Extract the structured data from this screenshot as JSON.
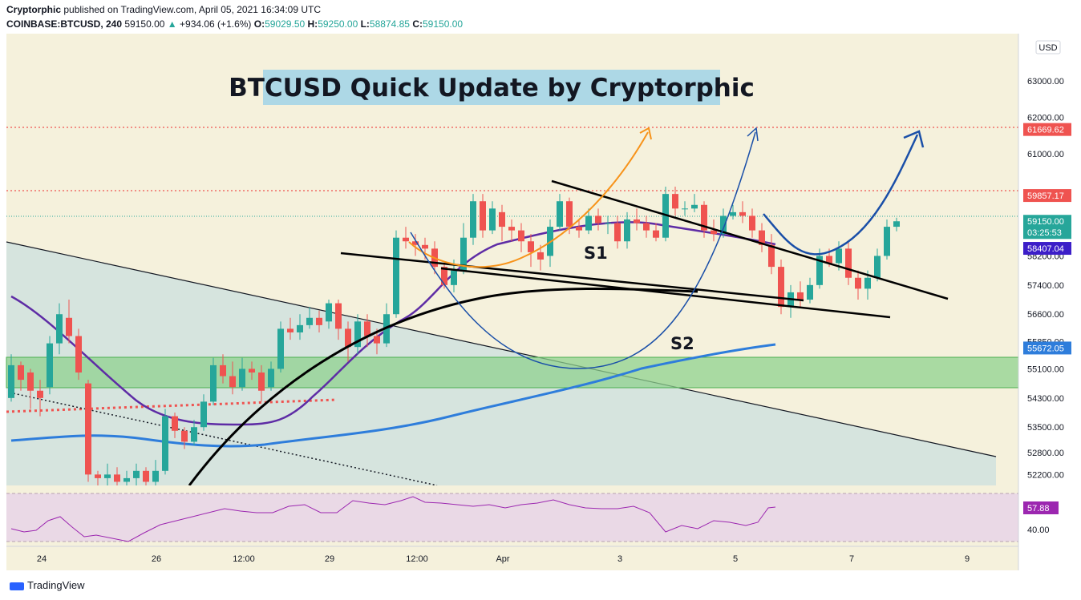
{
  "header": {
    "author": "Cryptorphic",
    "published": " published on TradingView.com, April 05, 2021 16:34:09 UTC",
    "symbol": "COINBASE:BTCUSD, 240",
    "last": "59150.00",
    "change": "+934.06 (+1.6%)",
    "o_label": "O:",
    "o": "59029.50",
    "h_label": "H:",
    "h": "59250.00",
    "l_label": "L:",
    "l": "58874.85",
    "c_label": "C:",
    "c": "59150.00"
  },
  "currency_label": "USD",
  "footer": {
    "brand": "TradingView"
  },
  "colors": {
    "background": "#f5f1dc",
    "bull": "#26a69a",
    "bear": "#ef5350",
    "zone": "#81c784",
    "rsi_bg": "#ead9e6",
    "rsi_line": "#9c27b0",
    "ma_slow": "#2e7ddb",
    "ma_fast": "#5e2ca5"
  },
  "chart_data": {
    "type": "candlestick",
    "title": "BTCUSD Quick Update by Cryptorphic",
    "x_ticks": [
      "24",
      "26",
      "12:00",
      "29",
      "12:00",
      "Apr",
      "3",
      "5",
      "7",
      "9"
    ],
    "y_ticks": [
      "63000.00",
      "62000.00",
      "61000.00",
      "59850.00",
      "58200.00",
      "57400.00",
      "56600.00",
      "55850.00",
      "55100.00",
      "54300.00",
      "53500.00",
      "52800.00",
      "52200.00"
    ],
    "y_range": [
      51900,
      64300
    ],
    "price_labels": [
      {
        "value": "61669.62",
        "price": 61669.62,
        "color": "#ef5350"
      },
      {
        "value": "59857.17",
        "price": 59857.17,
        "color": "#ef5350"
      },
      {
        "value": "59150.00",
        "price": 59150,
        "color": "#26a69a",
        "sub": "03:25:53"
      },
      {
        "value": "58407.04",
        "price": 58407.04,
        "color": "#3c1ec8"
      },
      {
        "value": "55672.05",
        "price": 55672.05,
        "color": "#2e7ddb"
      }
    ],
    "annotations": [
      "S1",
      "S2"
    ],
    "candles": [
      [
        54300,
        55200,
        55500,
        54200
      ],
      [
        55200,
        54800,
        55300,
        54500
      ],
      [
        55000,
        54500,
        55100,
        54000
      ],
      [
        54500,
        54300,
        54800,
        53800
      ],
      [
        54600,
        55800,
        56000,
        54400
      ],
      [
        55800,
        56600,
        56900,
        55500
      ],
      [
        56500,
        56000,
        57000,
        55800
      ],
      [
        56000,
        55000,
        56200,
        54800
      ],
      [
        54700,
        52200,
        54800,
        52000
      ],
      [
        52200,
        52100,
        52300,
        51900
      ],
      [
        52100,
        52200,
        52500,
        51900
      ],
      [
        52200,
        52000,
        52400,
        51900
      ],
      [
        52000,
        52100,
        52300,
        51900
      ],
      [
        52100,
        52300,
        52500,
        51900
      ],
      [
        52300,
        52000,
        52400,
        51900
      ],
      [
        52000,
        52300,
        52600,
        51900
      ],
      [
        52300,
        53800,
        54000,
        52200
      ],
      [
        53800,
        53400,
        53900,
        53200
      ],
      [
        53400,
        53100,
        53500,
        52900
      ],
      [
        53100,
        53500,
        53700,
        53000
      ],
      [
        53500,
        54200,
        54400,
        53400
      ],
      [
        54200,
        55200,
        55400,
        54100
      ],
      [
        55200,
        54900,
        55500,
        54700
      ],
      [
        54900,
        54600,
        55300,
        54400
      ],
      [
        54600,
        55100,
        55400,
        54500
      ],
      [
        55100,
        55000,
        55300,
        54800
      ],
      [
        55000,
        54500,
        55200,
        54200
      ],
      [
        54600,
        55100,
        55300,
        54500
      ],
      [
        55100,
        56200,
        56400,
        55000
      ],
      [
        56200,
        56100,
        56500,
        55900
      ],
      [
        56100,
        56300,
        56600,
        55900
      ],
      [
        56300,
        56500,
        56800,
        56200
      ],
      [
        56500,
        56300,
        56700,
        56100
      ],
      [
        56400,
        56900,
        57000,
        56200
      ],
      [
        56900,
        56200,
        57000,
        55900
      ],
      [
        56200,
        55700,
        56400,
        55300
      ],
      [
        55700,
        56400,
        56600,
        55500
      ],
      [
        56400,
        56000,
        56600,
        55700
      ],
      [
        56000,
        55800,
        56200,
        55500
      ],
      [
        55800,
        56600,
        56900,
        55700
      ],
      [
        56600,
        58700,
        58900,
        56500
      ],
      [
        58700,
        58600,
        59000,
        58400
      ],
      [
        58600,
        58500,
        58800,
        58200
      ],
      [
        58500,
        58400,
        58700,
        58100
      ],
      [
        58400,
        57900,
        58600,
        57700
      ],
      [
        57900,
        57400,
        58000,
        57300
      ],
      [
        57400,
        57800,
        58100,
        57200
      ],
      [
        57800,
        58700,
        59100,
        57700
      ],
      [
        58700,
        59700,
        59900,
        58500
      ],
      [
        59700,
        58900,
        59900,
        58700
      ],
      [
        58900,
        59500,
        59700,
        58800
      ],
      [
        59400,
        59000,
        59600,
        58600
      ],
      [
        59000,
        58900,
        59200,
        58600
      ],
      [
        58900,
        58600,
        59100,
        58300
      ],
      [
        58600,
        58300,
        58800,
        57900
      ],
      [
        58300,
        58100,
        58500,
        57800
      ],
      [
        58200,
        59000,
        59200,
        57900
      ],
      [
        59000,
        59700,
        59900,
        58900
      ],
      [
        59700,
        59000,
        59800,
        58800
      ],
      [
        59000,
        58900,
        59200,
        58700
      ],
      [
        58900,
        59300,
        59500,
        58800
      ],
      [
        59300,
        59100,
        59500,
        58900
      ],
      [
        59100,
        59100,
        59300,
        58800
      ],
      [
        59100,
        58600,
        59300,
        58400
      ],
      [
        58600,
        59200,
        59400,
        58400
      ],
      [
        59200,
        59100,
        59500,
        58900
      ],
      [
        59100,
        58900,
        59300,
        58700
      ],
      [
        58900,
        58700,
        59100,
        58600
      ],
      [
        58700,
        59900,
        60100,
        58600
      ],
      [
        59900,
        59500,
        60100,
        59300
      ],
      [
        59500,
        59500,
        59700,
        59300
      ],
      [
        59500,
        59600,
        59900,
        59400
      ],
      [
        59600,
        58900,
        59700,
        58700
      ],
      [
        58900,
        58800,
        59200,
        58600
      ],
      [
        58800,
        59300,
        59500,
        58700
      ],
      [
        59300,
        59400,
        59600,
        59200
      ],
      [
        59400,
        59300,
        59700,
        59100
      ],
      [
        59300,
        58900,
        59500,
        58700
      ],
      [
        58900,
        58500,
        59100,
        58300
      ],
      [
        58500,
        57900,
        58800,
        57700
      ],
      [
        57900,
        56800,
        58100,
        56600
      ],
      [
        56800,
        57200,
        57400,
        56500
      ],
      [
        57200,
        57000,
        57500,
        56800
      ],
      [
        57000,
        57400,
        57600,
        56900
      ],
      [
        57400,
        58200,
        58400,
        57300
      ],
      [
        58200,
        58000,
        58400,
        57900
      ],
      [
        58000,
        58400,
        58600,
        57800
      ],
      [
        58400,
        57600,
        58600,
        57400
      ],
      [
        57600,
        57300,
        57800,
        57000
      ],
      [
        57300,
        57600,
        57800,
        57000
      ],
      [
        57600,
        58200,
        58400,
        57500
      ],
      [
        58200,
        59000,
        59200,
        58100
      ],
      [
        59000,
        59150,
        59250,
        58874
      ]
    ],
    "rsi": {
      "label": "57.88",
      "value": 57.88,
      "ticks": [
        "40.00"
      ]
    }
  }
}
